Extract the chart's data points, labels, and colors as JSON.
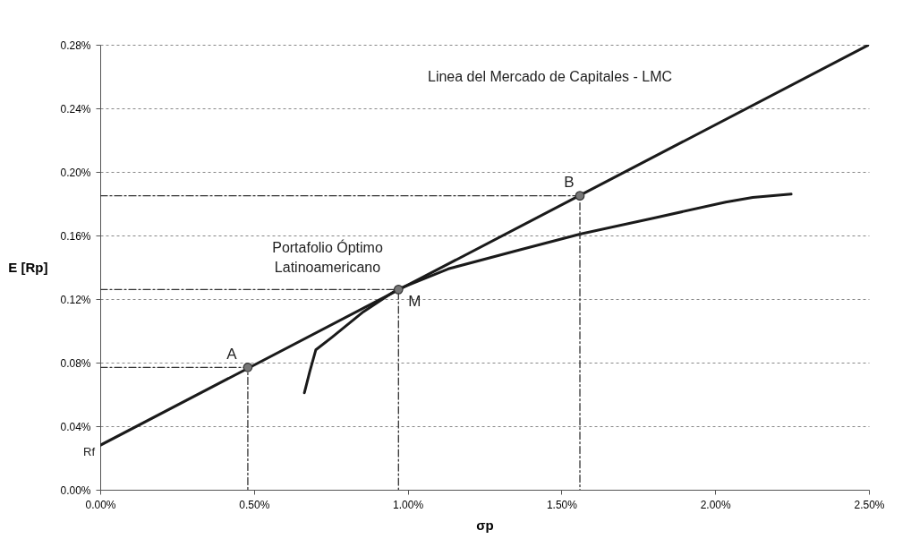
{
  "chart_data": {
    "type": "line",
    "xlabel": "σp",
    "ylabel": "E [Rp]",
    "xlim": [
      0,
      2.5
    ],
    "ylim": [
      0,
      0.28
    ],
    "xticks": [
      {
        "value": 0,
        "label": "0.00%"
      },
      {
        "value": 0.5,
        "label": "0.50%"
      },
      {
        "value": 1,
        "label": "1.00%"
      },
      {
        "value": 1.5,
        "label": "1.50%"
      },
      {
        "value": 2,
        "label": "2.00%"
      },
      {
        "value": 2.5,
        "label": "2.50%"
      }
    ],
    "yticks": [
      {
        "value": 0,
        "label": "0.00%"
      },
      {
        "value": 0.04,
        "label": "0.04%"
      },
      {
        "value": 0.08,
        "label": "0.08%"
      },
      {
        "value": 0.12,
        "label": "0.12%"
      },
      {
        "value": 0.16,
        "label": "0.16%"
      },
      {
        "value": 0.2,
        "label": "0.20%"
      },
      {
        "value": 0.24,
        "label": "0.24%"
      },
      {
        "value": 0.28,
        "label": "0.28%"
      }
    ],
    "grid": "y",
    "marker": "none",
    "series": [
      {
        "color": "#1a1a1a",
        "x": [
          0,
          2.5
        ],
        "values": [
          0.028,
          0.28
        ]
      },
      {
        "color": "#1a1a1a",
        "x": [
          0.664,
          0.681,
          0.701,
          0.754,
          0.856,
          0.966,
          1.132,
          1.365,
          1.563,
          1.801,
          2.034,
          2.122,
          2.247
        ],
        "values": [
          0.061,
          0.074,
          0.088,
          0.096,
          0.112,
          0.126,
          0.139,
          0.151,
          0.161,
          0.171,
          0.181,
          0.184,
          0.186
        ]
      },
      {
        "color": "#333333",
        "line_style": "dashed",
        "x": [
          0,
          0.48,
          0.48
        ],
        "values": [
          0.077,
          0.077,
          0
        ]
      },
      {
        "color": "#333333",
        "line_style": "dashed",
        "x": [
          0,
          0.97,
          0.97
        ],
        "values": [
          0.126,
          0.126,
          0
        ]
      },
      {
        "color": "#333333",
        "line_style": "dashed",
        "x": [
          0,
          1.56,
          1.56
        ],
        "values": [
          0.185,
          0.185,
          0
        ]
      },
      {
        "type": "scatter",
        "marker": "circle",
        "color": "#777777",
        "x": [
          0.48,
          0.97,
          1.56
        ],
        "values": [
          0.077,
          0.126,
          0.185
        ]
      }
    ],
    "annotations": [
      {
        "text": "A",
        "x": 0.48,
        "y": 0.077
      },
      {
        "text": "M",
        "x": 0.97,
        "y": 0.126
      },
      {
        "text": "B",
        "x": 1.56,
        "y": 0.185
      },
      {
        "text": "Rf",
        "x": 0,
        "y": 0.028
      },
      "Linea del Mercado de Capitales - LMC",
      "Portafolio Óptimo\nLatinoamericano"
    ]
  }
}
